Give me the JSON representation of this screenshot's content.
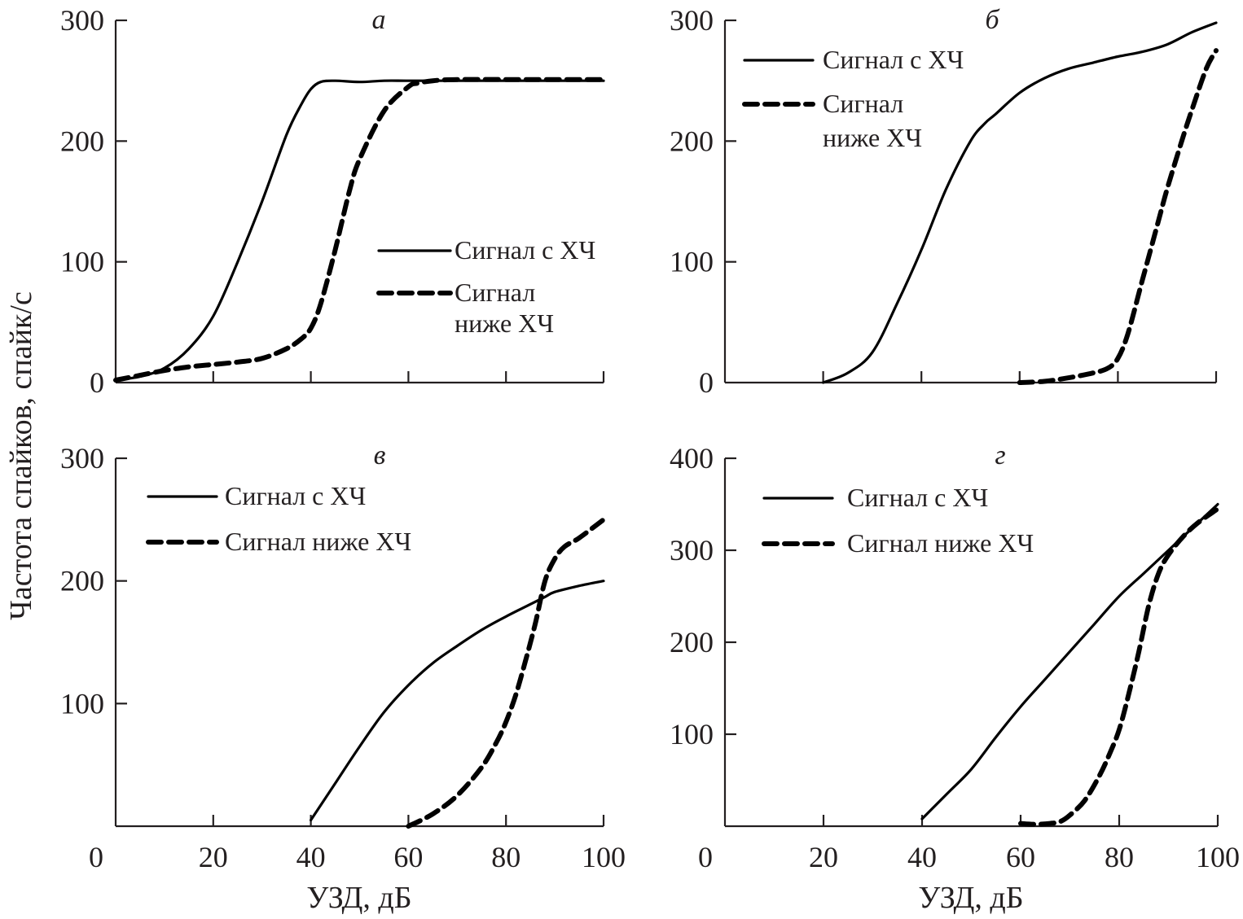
{
  "figure": {
    "ylabel": "Частота спайков, спайк/с",
    "xlabel": "УЗД, дБ"
  },
  "chart_data": [
    {
      "type": "line",
      "panel": "а",
      "title": "а",
      "xlabel": "",
      "ylabel": "Частота спайков, спайк/с",
      "xlim": [
        0,
        100
      ],
      "ylim": [
        0,
        300
      ],
      "xticks": [
        0,
        20,
        40,
        60,
        80,
        100
      ],
      "xtick_labels": [],
      "yticks": [
        0,
        100,
        200,
        300
      ],
      "ytick_labels": [
        "0",
        "100",
        "200",
        "300"
      ],
      "legend_position": "center-right",
      "series": [
        {
          "name": "Сигнал с ХЧ",
          "style": "solid",
          "x": [
            0,
            5,
            10,
            15,
            20,
            25,
            30,
            35,
            38,
            40,
            42,
            45,
            50,
            55,
            60,
            70,
            80,
            90,
            100
          ],
          "y": [
            2,
            5,
            12,
            28,
            55,
            100,
            150,
            205,
            230,
            243,
            249,
            250,
            249,
            250,
            250,
            250,
            250,
            250,
            250
          ]
        },
        {
          "name": "Сигнал\nниже ХЧ",
          "legend_lines": [
            "Сигнал",
            "ниже ХЧ"
          ],
          "style": "dashed",
          "x": [
            0,
            5,
            10,
            15,
            20,
            25,
            30,
            35,
            38,
            40,
            42,
            45,
            48,
            50,
            55,
            60,
            62,
            65,
            70,
            80,
            90,
            100
          ],
          "y": [
            2,
            6,
            10,
            13,
            15,
            17,
            20,
            28,
            36,
            45,
            65,
            110,
            160,
            185,
            225,
            245,
            248,
            250,
            251,
            251,
            251,
            251
          ]
        }
      ]
    },
    {
      "type": "line",
      "panel": "б",
      "title": "б",
      "xlabel": "",
      "ylabel": "",
      "xlim": [
        0,
        100
      ],
      "ylim": [
        0,
        300
      ],
      "xticks": [
        0,
        20,
        40,
        60,
        80,
        100
      ],
      "xtick_labels": [],
      "yticks": [
        0,
        100,
        200,
        300
      ],
      "ytick_labels": [
        "0",
        "100",
        "200",
        "300"
      ],
      "legend_position": "top-left",
      "series": [
        {
          "name": "Сигнал с ХЧ",
          "style": "solid",
          "x": [
            20,
            25,
            30,
            35,
            40,
            45,
            50,
            53,
            55,
            60,
            65,
            70,
            75,
            80,
            85,
            90,
            95,
            100
          ],
          "y": [
            0,
            8,
            25,
            65,
            110,
            160,
            200,
            215,
            222,
            240,
            252,
            260,
            265,
            270,
            274,
            280,
            290,
            298
          ]
        },
        {
          "name": "Сигнал\nниже ХЧ",
          "legend_lines": [
            "Сигнал",
            "ниже ХЧ"
          ],
          "style": "dashed",
          "x": [
            60,
            65,
            70,
            75,
            78,
            80,
            82,
            85,
            88,
            90,
            93,
            95,
            98,
            100
          ],
          "y": [
            0,
            1,
            4,
            8,
            12,
            20,
            40,
            85,
            130,
            160,
            200,
            225,
            260,
            275
          ]
        }
      ]
    },
    {
      "type": "line",
      "panel": "в",
      "title": "в",
      "xlabel": "УЗД, дБ",
      "ylabel": "",
      "xlim": [
        0,
        100
      ],
      "ylim": [
        0,
        300
      ],
      "xticks": [
        0,
        20,
        40,
        60,
        80,
        100
      ],
      "xtick_labels": [
        "0",
        "20",
        "40",
        "60",
        "80",
        "100"
      ],
      "yticks": [
        0,
        100,
        200,
        300
      ],
      "ytick_labels": [
        "",
        "100",
        "200",
        "300"
      ],
      "legend_position": "top-left",
      "series": [
        {
          "name": "Сигнал с ХЧ",
          "style": "solid",
          "x": [
            40,
            45,
            50,
            55,
            60,
            65,
            70,
            75,
            80,
            85,
            88,
            90,
            95,
            100
          ],
          "y": [
            5,
            35,
            65,
            93,
            115,
            133,
            147,
            160,
            171,
            181,
            187,
            191,
            196,
            200
          ]
        },
        {
          "name": "Сигнал ниже ХЧ",
          "legend_lines": [
            "Сигнал ниже ХЧ"
          ],
          "style": "dashed",
          "x": [
            60,
            65,
            70,
            75,
            78,
            80,
            82,
            84,
            86,
            88,
            90,
            92,
            95,
            100
          ],
          "y": [
            0,
            10,
            25,
            48,
            68,
            85,
            107,
            135,
            165,
            200,
            218,
            228,
            235,
            250
          ]
        }
      ]
    },
    {
      "type": "line",
      "panel": "г",
      "title": "г",
      "xlabel": "УЗД, дБ",
      "ylabel": "",
      "xlim": [
        0,
        100
      ],
      "ylim": [
        0,
        400
      ],
      "xticks": [
        0,
        20,
        40,
        60,
        80,
        100
      ],
      "xtick_labels": [
        "0",
        "20",
        "40",
        "60",
        "80",
        "100"
      ],
      "yticks": [
        0,
        100,
        200,
        300,
        400
      ],
      "ytick_labels": [
        "",
        "100",
        "200",
        "300",
        "400"
      ],
      "legend_position": "top-left",
      "series": [
        {
          "name": "Сигнал с ХЧ",
          "style": "solid",
          "x": [
            40,
            45,
            50,
            55,
            60,
            65,
            70,
            75,
            80,
            85,
            90,
            95,
            100
          ],
          "y": [
            8,
            35,
            62,
            97,
            130,
            160,
            190,
            220,
            250,
            275,
            300,
            325,
            350
          ]
        },
        {
          "name": "Сигнал ниже ХЧ",
          "legend_lines": [
            "Сигнал ниже ХЧ"
          ],
          "style": "dashed",
          "x": [
            60,
            63,
            66,
            68,
            70,
            73,
            76,
            78,
            80,
            82,
            84,
            86,
            88,
            90,
            93,
            96,
            100
          ],
          "y": [
            3,
            2,
            3,
            5,
            12,
            28,
            55,
            78,
            105,
            145,
            190,
            240,
            275,
            295,
            315,
            330,
            345
          ]
        }
      ]
    }
  ]
}
